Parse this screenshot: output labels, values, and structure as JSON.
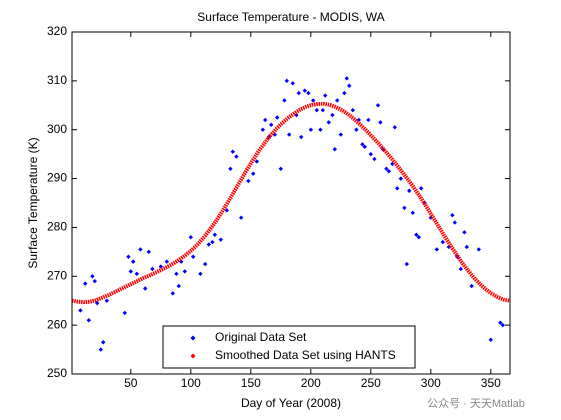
{
  "chart_data": {
    "type": "scatter",
    "title": "Surface Temperature - MODIS, WA",
    "xlabel": "Day of Year (2008)",
    "ylabel": "Surface Temperature (K)",
    "watermark": "公众号 · 天天Matlab",
    "xlim": [
      1,
      366
    ],
    "ylim": [
      250,
      320
    ],
    "xticks": [
      50,
      100,
      150,
      200,
      250,
      300,
      350
    ],
    "yticks": [
      250,
      260,
      270,
      280,
      290,
      300,
      310,
      320
    ],
    "legend": "lower center",
    "series": [
      {
        "name": "Original Data Set",
        "color": "#0000ff",
        "style": "points",
        "x": [
          8,
          12,
          15,
          18,
          20,
          22,
          25,
          27,
          30,
          45,
          48,
          50,
          52,
          55,
          58,
          62,
          65,
          68,
          75,
          80,
          85,
          88,
          90,
          92,
          95,
          100,
          102,
          108,
          112,
          115,
          118,
          120,
          125,
          130,
          133,
          135,
          138,
          142,
          148,
          152,
          155,
          160,
          162,
          165,
          167,
          170,
          172,
          175,
          178,
          180,
          182,
          185,
          188,
          190,
          192,
          195,
          198,
          200,
          202,
          205,
          208,
          210,
          212,
          215,
          218,
          220,
          222,
          225,
          228,
          230,
          232,
          235,
          238,
          240,
          243,
          245,
          248,
          250,
          253,
          256,
          258,
          260,
          263,
          265,
          268,
          270,
          272,
          275,
          278,
          280,
          282,
          285,
          288,
          290,
          292,
          295,
          300,
          305,
          310,
          315,
          318,
          320,
          322,
          325,
          328,
          330,
          334,
          340,
          350,
          358,
          360
        ],
        "values": [
          263,
          268.5,
          261,
          270,
          269,
          264.5,
          255,
          256.5,
          265,
          262.5,
          274,
          271,
          273,
          270.5,
          275.5,
          267.5,
          275,
          271.5,
          272,
          273,
          266.5,
          270.5,
          268,
          273,
          271,
          278,
          274,
          270.5,
          272.5,
          276.5,
          277,
          278.5,
          277.5,
          283.5,
          292,
          295.5,
          294.5,
          282,
          289.5,
          291,
          293.5,
          300,
          302,
          298.5,
          301,
          299,
          302.5,
          292,
          306,
          310,
          299,
          309.5,
          303,
          307.5,
          298.5,
          308,
          307.5,
          300,
          306,
          304,
          300,
          304,
          307,
          301.5,
          303,
          296,
          306,
          299,
          307.5,
          310.5,
          309,
          304,
          300,
          302,
          297,
          296.5,
          302,
          295,
          294,
          305,
          301.5,
          296,
          292,
          291.5,
          293,
          300.5,
          288,
          290,
          284,
          272.5,
          287.5,
          283,
          278.5,
          278,
          288,
          285,
          282,
          275.5,
          277,
          276,
          282.5,
          281,
          274,
          271.5,
          279,
          276,
          268,
          275.5,
          257,
          260.5,
          260
        ]
      },
      {
        "name": "Smoothed Data Set using HANTS",
        "color": "#ff0000",
        "style": "thick-line",
        "x": [
          1,
          6,
          11,
          16,
          21,
          26,
          31,
          36,
          41,
          46,
          51,
          56,
          61,
          66,
          71,
          76,
          81,
          86,
          91,
          96,
          101,
          106,
          111,
          116,
          121,
          126,
          131,
          136,
          141,
          146,
          151,
          156,
          161,
          166,
          171,
          176,
          181,
          186,
          191,
          196,
          201,
          206,
          211,
          216,
          221,
          226,
          231,
          236,
          241,
          246,
          251,
          256,
          261,
          266,
          271,
          276,
          281,
          286,
          291,
          296,
          301,
          306,
          311,
          316,
          321,
          326,
          331,
          336,
          341,
          346,
          351,
          356,
          361,
          366
        ],
        "values": [
          265.0,
          264.8,
          264.7,
          264.8,
          265.1,
          265.6,
          266.1,
          266.7,
          267.3,
          267.9,
          268.5,
          269.1,
          269.7,
          270.2,
          270.8,
          271.4,
          272.0,
          272.7,
          273.5,
          274.4,
          275.4,
          276.6,
          278.0,
          279.6,
          281.3,
          283.2,
          285.2,
          287.3,
          289.4,
          291.5,
          293.5,
          295.4,
          297.1,
          298.7,
          300.1,
          301.3,
          302.4,
          303.3,
          304.1,
          304.7,
          305.1,
          305.3,
          305.3,
          305.1,
          304.6,
          304.0,
          303.2,
          302.2,
          301.1,
          299.9,
          298.6,
          297.3,
          295.9,
          294.5,
          293.0,
          291.4,
          289.8,
          288.1,
          286.3,
          284.4,
          282.4,
          280.4,
          278.4,
          276.5,
          274.6,
          272.8,
          271.2,
          269.7,
          268.4,
          267.3,
          266.4,
          265.7,
          265.2,
          265.0
        ]
      }
    ]
  }
}
